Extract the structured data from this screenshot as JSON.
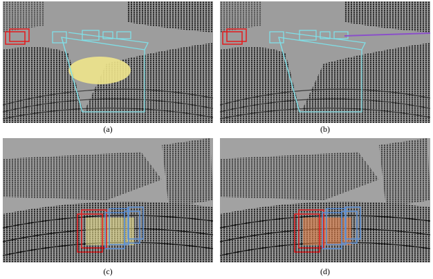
{
  "panels": [
    {
      "caption": "(a)"
    },
    {
      "caption": "(b)"
    },
    {
      "caption": "(c)"
    },
    {
      "caption": "(d)"
    }
  ]
}
